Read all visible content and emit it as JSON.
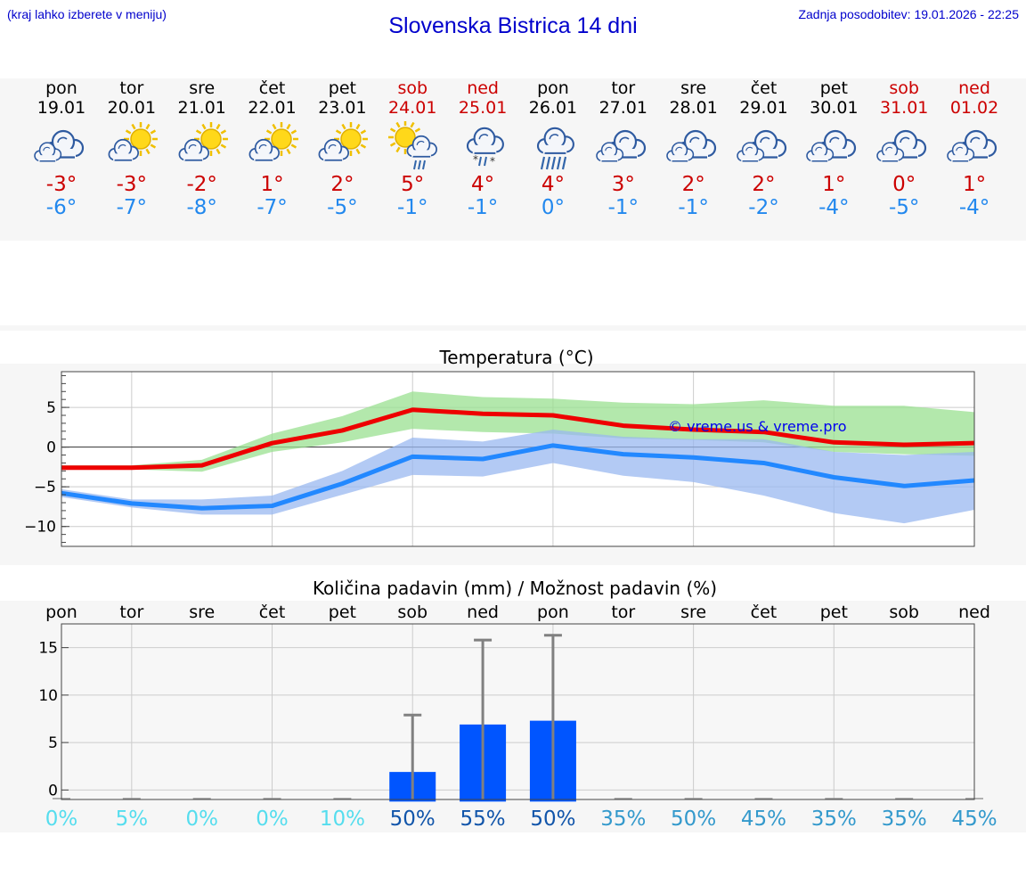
{
  "header": {
    "left_note": "(kraj lahko izberete v meniju)",
    "title": "Slovenska Bistrica 14 dni",
    "updated": "Zadnja posodobitev: 19.01.2026 - 22:25"
  },
  "colors": {
    "title_blue": "#0000cc",
    "weekend_red": "#cc0000",
    "max_red": "#cc0000",
    "min_blue": "#2288ee"
  },
  "days": [
    {
      "name": "pon",
      "date": "19.01",
      "icon": "cloudy-icon",
      "tmax": "-3°",
      "tmin": "-6°",
      "weekend": false
    },
    {
      "name": "tor",
      "date": "20.01",
      "icon": "partly-sunny-icon",
      "tmax": "-3°",
      "tmin": "-7°",
      "weekend": false
    },
    {
      "name": "sre",
      "date": "21.01",
      "icon": "partly-sunny-icon",
      "tmax": "-2°",
      "tmin": "-8°",
      "weekend": false
    },
    {
      "name": "čet",
      "date": "22.01",
      "icon": "partly-sunny-icon",
      "tmax": "1°",
      "tmin": "-7°",
      "weekend": false
    },
    {
      "name": "pet",
      "date": "23.01",
      "icon": "partly-sunny-icon",
      "tmax": "2°",
      "tmin": "-5°",
      "weekend": false
    },
    {
      "name": "sob",
      "date": "24.01",
      "icon": "sun-rain-icon",
      "tmax": "5°",
      "tmin": "-1°",
      "weekend": true
    },
    {
      "name": "ned",
      "date": "25.01",
      "icon": "sleet-icon",
      "tmax": "4°",
      "tmin": "-1°",
      "weekend": true
    },
    {
      "name": "pon",
      "date": "26.01",
      "icon": "rain-icon",
      "tmax": "4°",
      "tmin": "0°",
      "weekend": false
    },
    {
      "name": "tor",
      "date": "27.01",
      "icon": "cloudy-icon",
      "tmax": "3°",
      "tmin": "-1°",
      "weekend": false
    },
    {
      "name": "sre",
      "date": "28.01",
      "icon": "cloudy-icon",
      "tmax": "2°",
      "tmin": "-1°",
      "weekend": false
    },
    {
      "name": "čet",
      "date": "29.01",
      "icon": "cloudy-icon",
      "tmax": "2°",
      "tmin": "-2°",
      "weekend": false
    },
    {
      "name": "pet",
      "date": "30.01",
      "icon": "cloudy-icon",
      "tmax": "1°",
      "tmin": "-4°",
      "weekend": false
    },
    {
      "name": "sob",
      "date": "31.01",
      "icon": "cloudy-icon",
      "tmax": "0°",
      "tmin": "-5°",
      "weekend": true
    },
    {
      "name": "ned",
      "date": "01.02",
      "icon": "cloudy-icon",
      "tmax": "1°",
      "tmin": "-4°",
      "weekend": true
    }
  ],
  "chart_data": [
    {
      "type": "line",
      "title": "Temperatura (°C)",
      "watermark": "© vreme.us & vreme.pro",
      "ylim": [
        -12.5,
        9.5
      ],
      "yticks": [
        5,
        0,
        -5,
        -10
      ],
      "ytick_labels": [
        "5",
        "0",
        "−5",
        "−10"
      ],
      "x": [
        0,
        1,
        2,
        3,
        4,
        5,
        6,
        7,
        8,
        9,
        10,
        11,
        12,
        13
      ],
      "series": [
        {
          "name": "max",
          "color": "#ee0000",
          "values": [
            -2.6,
            -2.6,
            -2.3,
            0.5,
            2.1,
            4.7,
            4.2,
            4.0,
            2.7,
            2.2,
            1.9,
            0.6,
            0.3,
            0.5
          ],
          "band_low": [
            -2.8,
            -2.8,
            -3.1,
            -0.6,
            0.6,
            2.3,
            1.9,
            1.7,
            1.1,
            0.9,
            0.6,
            -0.6,
            -0.9,
            -1.1
          ],
          "band_high": [
            -2.3,
            -2.3,
            -1.6,
            1.7,
            3.9,
            7.0,
            6.3,
            6.1,
            5.6,
            5.4,
            5.9,
            5.2,
            5.2,
            4.4
          ],
          "band_color": "#99e090"
        },
        {
          "name": "min",
          "color": "#2288ff",
          "values": [
            -5.8,
            -7.1,
            -7.7,
            -7.4,
            -4.6,
            -1.2,
            -1.5,
            0.2,
            -0.9,
            -1.3,
            -2.0,
            -3.8,
            -4.9,
            -4.2
          ],
          "band_low": [
            -6.3,
            -7.6,
            -8.5,
            -8.5,
            -6.0,
            -3.5,
            -3.7,
            -2.0,
            -3.6,
            -4.4,
            -6.1,
            -8.3,
            -9.6,
            -7.9
          ],
          "band_high": [
            -5.3,
            -6.6,
            -6.6,
            -6.1,
            -3.0,
            1.2,
            0.7,
            2.2,
            1.3,
            1.0,
            1.0,
            -0.6,
            -1.0,
            -0.6
          ],
          "band_color": "#99b8f0"
        }
      ]
    },
    {
      "type": "bar",
      "title": "Količina padavin (mm) / Možnost padavin (%)",
      "categories": [
        "pon",
        "tor",
        "sre",
        "čet",
        "pet",
        "sob",
        "ned",
        "pon",
        "tor",
        "sre",
        "čet",
        "pet",
        "sob",
        "ned"
      ],
      "values": [
        0,
        0,
        0,
        0,
        0,
        1.9,
        6.9,
        7.3,
        0,
        0,
        0,
        0,
        0,
        0
      ],
      "error_high": [
        0,
        0,
        0,
        0,
        0,
        7.9,
        15.8,
        16.3,
        0,
        0,
        0,
        0,
        0,
        0
      ],
      "probability": [
        "0%",
        "5%",
        "0%",
        "0%",
        "10%",
        "50%",
        "55%",
        "50%",
        "35%",
        "50%",
        "45%",
        "35%",
        "35%",
        "45%"
      ],
      "probability_colors": [
        "#55ddee",
        "#55ddee",
        "#55ddee",
        "#55ddee",
        "#55ddee",
        "#1155aa",
        "#1155aa",
        "#1155aa",
        "#3399cc",
        "#3399cc",
        "#3399cc",
        "#3399cc",
        "#3399cc",
        "#3399cc"
      ],
      "ylim": [
        -1,
        17.5
      ],
      "yticks": [
        15,
        10,
        5,
        0
      ],
      "ytick_labels": [
        "15",
        "10",
        "5",
        "0"
      ],
      "bar_color": "#0055ff"
    }
  ]
}
